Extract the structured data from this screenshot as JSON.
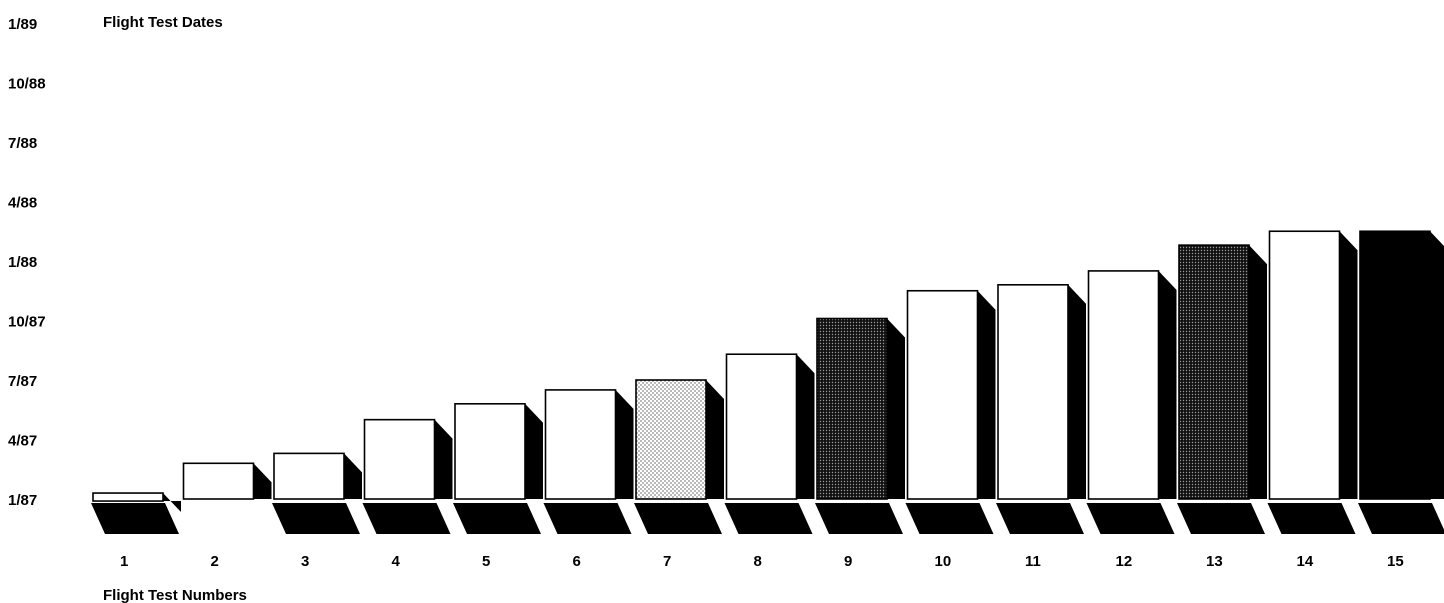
{
  "chart_data": {
    "type": "bar",
    "title": "Flight Test Dates",
    "xlabel": "Flight Test Numbers",
    "ylabel": "",
    "categories": [
      "1",
      "2",
      "3",
      "4",
      "5",
      "6",
      "7",
      "8",
      "9",
      "10",
      "11",
      "12",
      "13",
      "14",
      "15"
    ],
    "y_ticks": [
      "1/87",
      "4/87",
      "7/87",
      "10/87",
      "1/88",
      "4/88",
      "7/88",
      "10/88",
      "1/89"
    ],
    "ylim": [
      0,
      24
    ],
    "values": [
      0.3,
      1.8,
      2.3,
      4.0,
      4.8,
      5.5,
      6.0,
      7.3,
      9.1,
      10.5,
      10.8,
      11.5,
      12.8,
      13.5,
      13.5
    ],
    "bar_fills": [
      "white",
      "white",
      "white",
      "white",
      "white",
      "white",
      "light-dots",
      "white",
      "dark-dots",
      "white",
      "white",
      "white",
      "dark-dots",
      "white",
      "black"
    ],
    "grid": false,
    "legend": "none",
    "colors": {
      "ink": "#000000",
      "paper": "#ffffff",
      "light_dots": "#8a8a8a",
      "dark_dots": "#111111"
    }
  }
}
